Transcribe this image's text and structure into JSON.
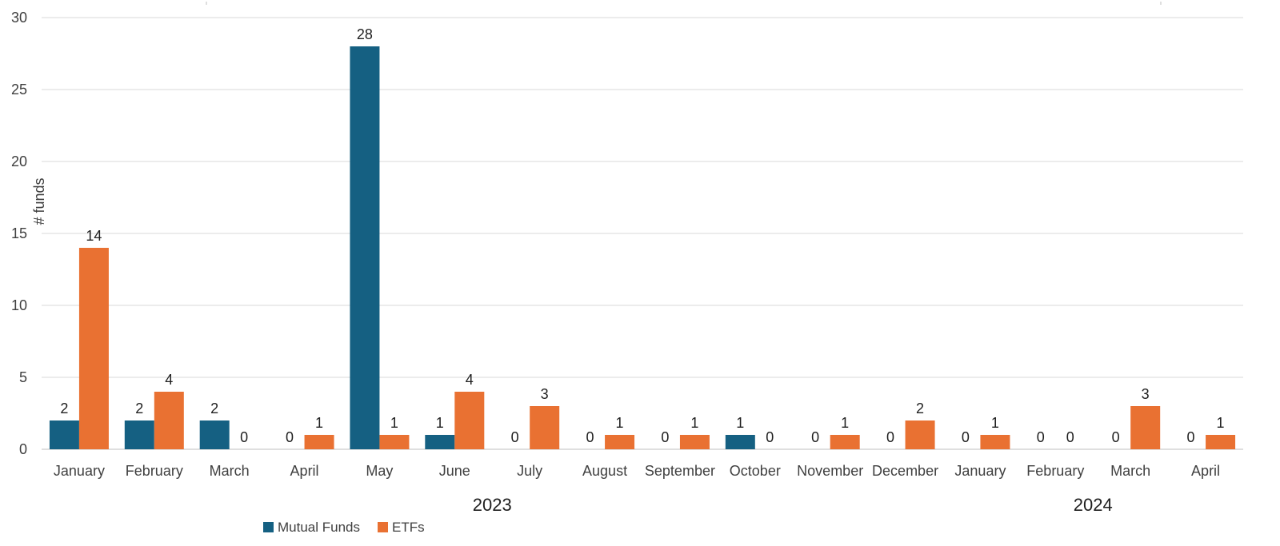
{
  "chart_data": {
    "type": "bar",
    "title": "",
    "xlabel": "",
    "ylabel": "# funds",
    "ylim": [
      0,
      30
    ],
    "yticks": [
      0,
      5,
      10,
      15,
      20,
      25,
      30
    ],
    "grid": true,
    "legend_position": "bottom",
    "categories": [
      "January",
      "February",
      "March",
      "April",
      "May",
      "June",
      "July",
      "August",
      "September",
      "October",
      "November",
      "December",
      "January",
      "February",
      "March",
      "April"
    ],
    "category_groups": [
      {
        "label": "2023",
        "start": 0,
        "end": 11
      },
      {
        "label": "2024",
        "start": 12,
        "end": 15
      }
    ],
    "series": [
      {
        "name": "Mutual Funds",
        "color": "#156082",
        "values": [
          2,
          2,
          2,
          0,
          28,
          1,
          0,
          0,
          0,
          1,
          0,
          0,
          0,
          0,
          0,
          0
        ]
      },
      {
        "name": "ETFs",
        "color": "#E97132",
        "values": [
          14,
          4,
          0,
          1,
          1,
          4,
          3,
          1,
          1,
          0,
          1,
          2,
          1,
          0,
          3,
          1
        ]
      }
    ]
  }
}
